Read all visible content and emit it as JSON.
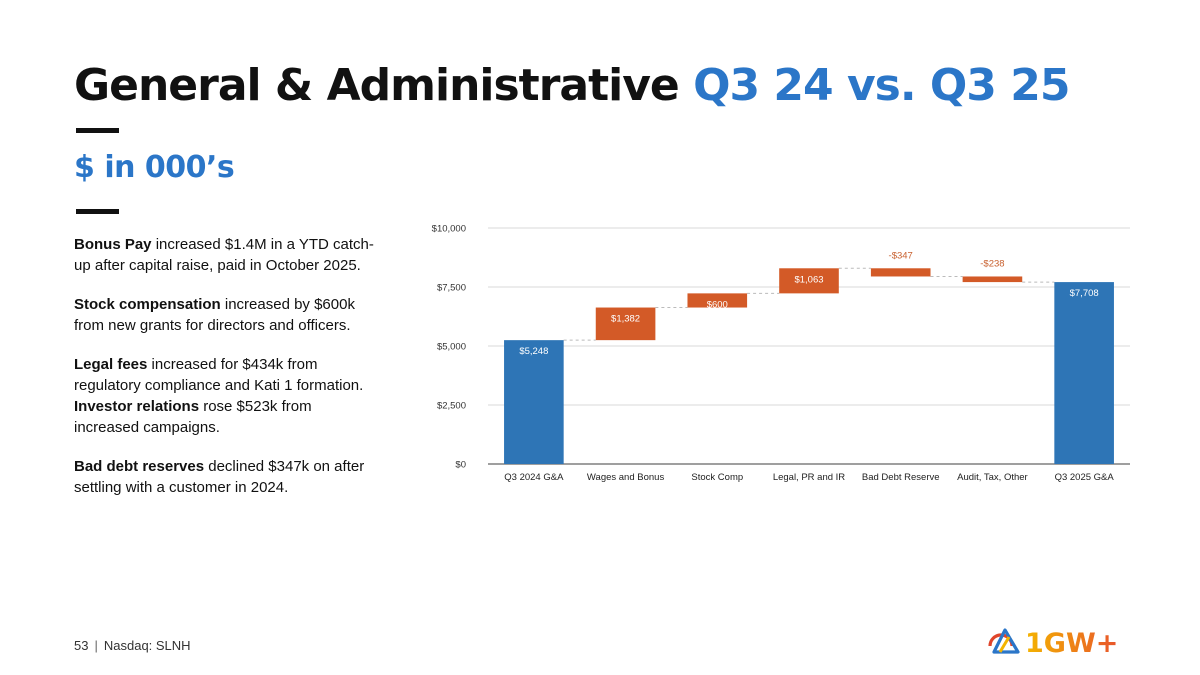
{
  "slide": {
    "title_main": "General & Administrative",
    "title_accent": "Q3 24 vs. Q3 25",
    "subtitle": "$ in 000’s",
    "page_number": "53",
    "footer_text": "Nasdaq: SLNH",
    "logo_text": "1GW+"
  },
  "notes": [
    {
      "bold": "Bonus Pay",
      "rest": " increased $1.4M in a YTD catch-up after capital raise, paid in October 2025.",
      "bold2": "",
      "rest2": ""
    },
    {
      "bold": "Stock compensation",
      "rest": " increased by $600k from new grants for directors and officers.",
      "bold2": "",
      "rest2": ""
    },
    {
      "bold": "Legal fees",
      "rest": " increased for $434k from regulatory compliance and Kati 1 formation. ",
      "bold2": "Investor relations",
      "rest2": " rose $523k from increased campaigns."
    },
    {
      "bold": "Bad debt reserves",
      "rest": " declined $347k on after settling with a customer in 2024.",
      "bold2": "",
      "rest2": ""
    }
  ],
  "colors": {
    "total": "#2e75b6",
    "change": "#d35a27",
    "negative_label": "#c8602e",
    "grid": "#d9d9d9",
    "axis": "#666666"
  },
  "chart_data": {
    "type": "waterfall",
    "title": "",
    "xlabel": "",
    "ylabel": "",
    "ylim": [
      0,
      10000
    ],
    "yticks": [
      0,
      2500,
      5000,
      7500,
      10000
    ],
    "ytick_labels": [
      "$0",
      "$2,500",
      "$5,000",
      "$7,500",
      "$10,000"
    ],
    "grid": true,
    "categories": [
      "Q3 2024 G&A",
      "Wages and Bonus",
      "Stock Comp",
      "Legal, PR and IR",
      "Bad Debt Reserve",
      "Audit, Tax, Other",
      "Q3 2025 G&A"
    ],
    "values": [
      5248,
      1382,
      600,
      1063,
      -347,
      -238,
      7708
    ],
    "kinds": [
      "total",
      "increase",
      "increase",
      "increase",
      "decrease",
      "decrease",
      "total"
    ],
    "data_labels": [
      "$5,248",
      "$1,382",
      "$600",
      "$1,063",
      "-$347",
      "-$238",
      "$7,708"
    ]
  }
}
